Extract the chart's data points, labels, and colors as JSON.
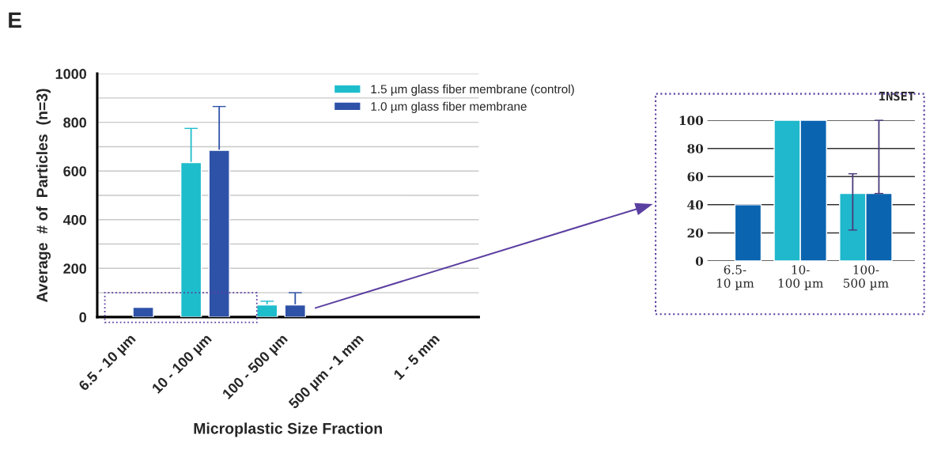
{
  "chart_data": [
    {
      "type": "bar",
      "xlabel": "Microplastic Size Fraction",
      "ylabel": "Average  # of  Particles  (n=3)",
      "categories": [
        "6.5 - 10 µm",
        "10 - 100 µm",
        "100 - 500 µm",
        "500 µm - 1 mm",
        "1 - 5 mm"
      ],
      "series": [
        {
          "name": "1.5 µm glass fiber membrane (control)",
          "color": "#1ebdcc",
          "values": [
            null,
            635,
            50,
            null,
            null
          ],
          "errors": [
            null,
            140,
            15,
            null,
            null
          ]
        },
        {
          "name": "1.0 µm glass fiber membrane",
          "color": "#2e52a8",
          "values": [
            40,
            685,
            50,
            null,
            null
          ],
          "errors": [
            null,
            180,
            50,
            null,
            null
          ]
        }
      ],
      "ylim": [
        0,
        1000
      ],
      "yticks": [
        0,
        {
          "value": 100,
          "label": null
        },
        200,
        {
          "value": 300,
          "label": null
        },
        400,
        {
          "value": 500,
          "label": null
        },
        600,
        {
          "value": 700,
          "label": null
        },
        800,
        {
          "value": 900,
          "label": null
        },
        1000
      ],
      "grid": "y",
      "legend": "top right",
      "annotations": [
        "E"
      ]
    },
    {
      "type": "bar",
      "title": "INSET",
      "categories": [
        "6.5-\n10 µm",
        "10-\n100 µm",
        "100-\n500 µm"
      ],
      "series": [
        {
          "color": "#1fb8cc",
          "values": [
            null,
            100,
            48
          ],
          "errors": [
            null,
            null,
            [
              22,
              62
            ]
          ]
        },
        {
          "color": "#0a64b0",
          "values": [
            40,
            100,
            48
          ],
          "errors": [
            null,
            null,
            [
              48,
              100
            ]
          ]
        }
      ],
      "ylim": [
        0,
        100
      ],
      "yticks": [
        0,
        20,
        40,
        60,
        80,
        100
      ],
      "grid": "y"
    }
  ]
}
